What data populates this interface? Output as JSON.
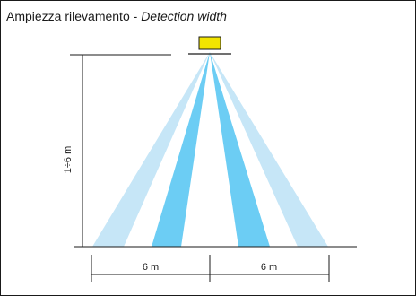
{
  "title": {
    "italian": "Ampiezza rilevamento",
    "separator": " - ",
    "english": "Detection width"
  },
  "dimensions": {
    "height_label": "1÷6 m",
    "width_left_label": "6 m",
    "width_right_label": "6 m"
  },
  "colors": {
    "sensor_fill": "#f2e400",
    "beam_light": "#c6e6f7",
    "beam_dark": "#6ccdf4",
    "line": "#1a1a1a"
  }
}
